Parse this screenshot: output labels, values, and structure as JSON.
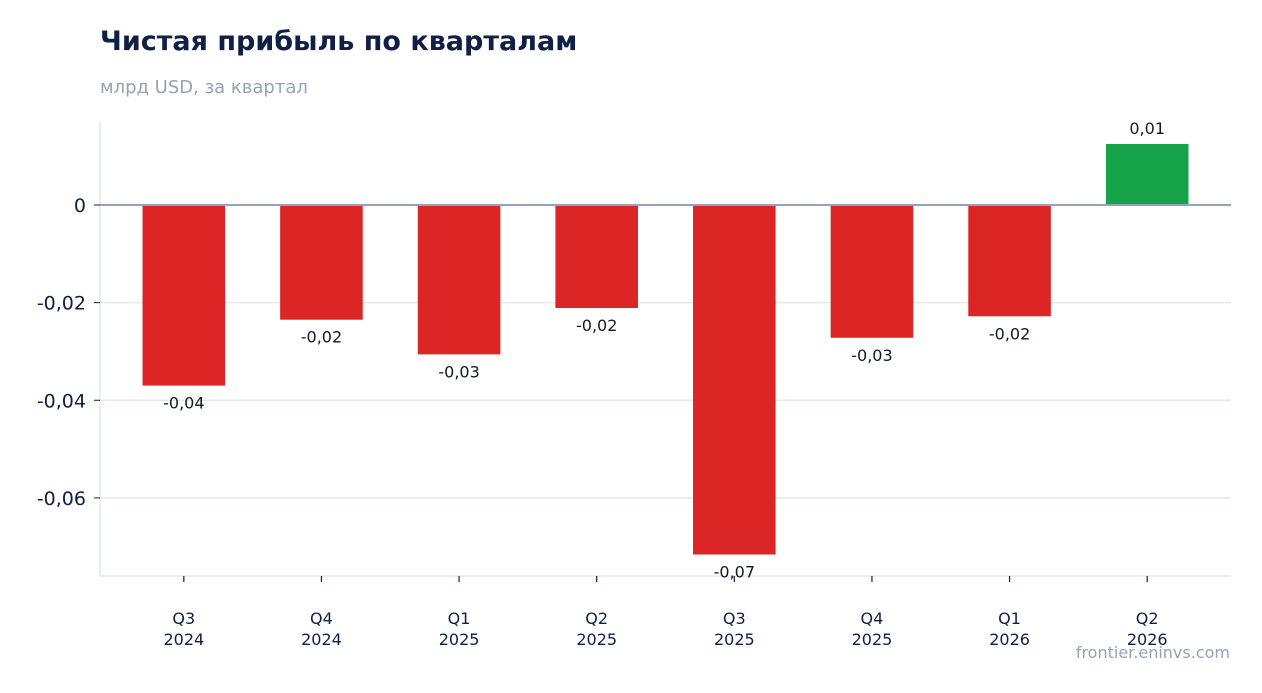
{
  "chart_data": {
    "type": "bar",
    "title": "Чистая прибыль по кварталам",
    "subtitle": "млрд USD, за квартал",
    "categories": [
      [
        "Q3",
        "2024"
      ],
      [
        "Q4",
        "2024"
      ],
      [
        "Q1",
        "2025"
      ],
      [
        "Q2",
        "2025"
      ],
      [
        "Q3",
        "2025"
      ],
      [
        "Q4",
        "2025"
      ],
      [
        "Q1",
        "2026"
      ],
      [
        "Q2",
        "2026"
      ]
    ],
    "values": [
      -0.037,
      -0.0235,
      -0.0306,
      -0.0211,
      -0.0716,
      -0.0272,
      -0.0228,
      0.0125
    ],
    "value_labels": [
      "-0,04",
      "-0,02",
      "-0,03",
      "-0,02",
      "-0,07",
      "-0,03",
      "-0,02",
      "0,01"
    ],
    "yticks": [
      0,
      -0.02,
      -0.04,
      -0.06
    ],
    "ytick_labels": [
      "0",
      "-0,02",
      "-0,04",
      "-0,06"
    ],
    "ylim": [
      -0.076,
      0.017
    ],
    "grid": true,
    "legend": "none",
    "colors": {
      "negative": "#dc2626",
      "positive": "#16a34a",
      "zero_line": "#94a3b8",
      "grid": "#e2e8f0"
    }
  },
  "footer": "frontier.eninvs.com"
}
